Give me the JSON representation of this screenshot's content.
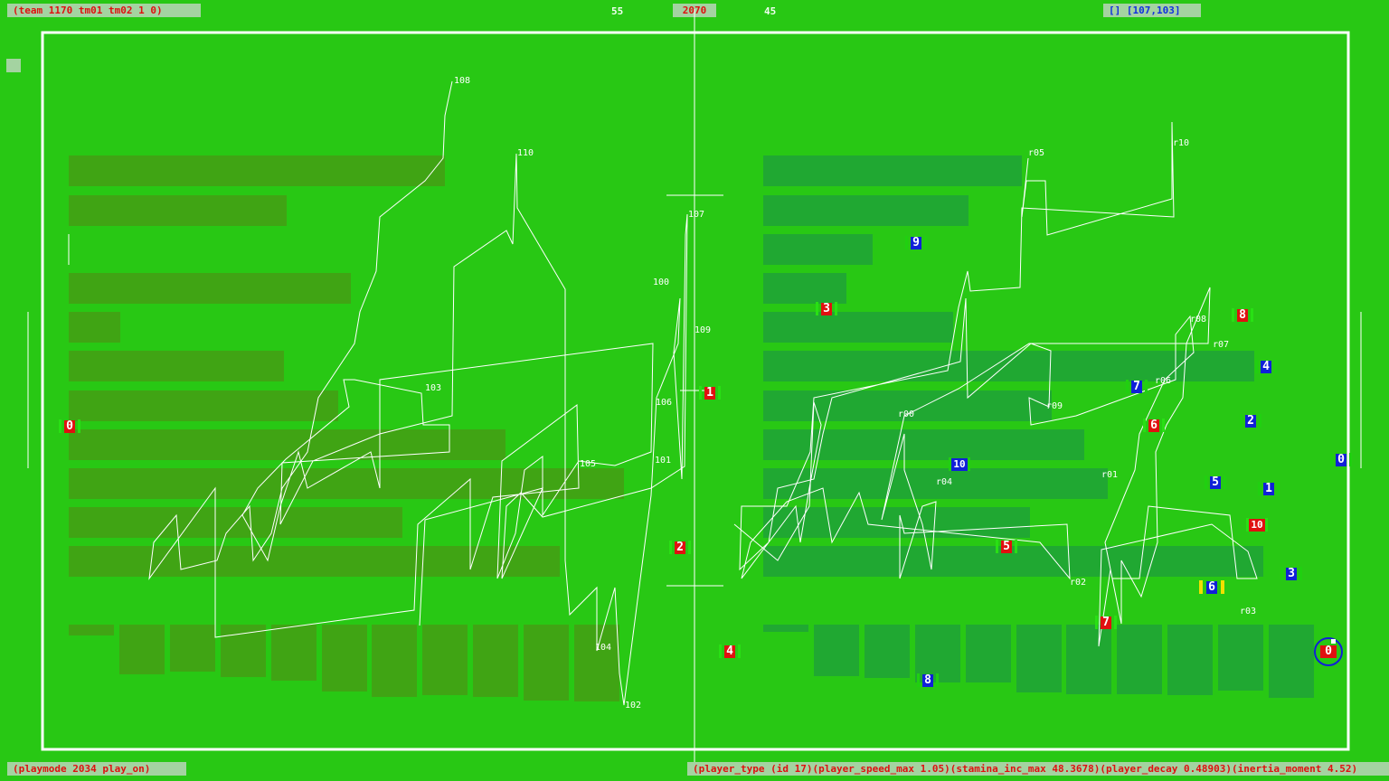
{
  "header": {
    "team_info": "(team 1170 tm01 tm02 1 0)",
    "score_left": "55",
    "time": "2070",
    "score_right": "45",
    "cursor": "[] [107,103]"
  },
  "footer": {
    "playmode": "(playmode 2034 play_on)",
    "player_type": "(player_type (id 17)(player_speed_max 1.05)(stamina_inc_max 48.3678)(player_decay 0.48903)(inertia_moment 4.52)"
  },
  "colors": {
    "pitch": "#28c814",
    "red_team": "#e01010",
    "blue_team": "#1020d8",
    "lines": "#ffffff"
  },
  "red_players": [
    "0",
    "1",
    "2",
    "3",
    "4",
    "5",
    "6",
    "7",
    "8",
    "10",
    "0"
  ],
  "blue_players": [
    "9",
    "4",
    "7",
    "2",
    "0",
    "10",
    "5",
    "1",
    "3",
    "6",
    "8"
  ],
  "left_labels": [
    "108",
    "110",
    "107",
    "100",
    "109",
    "103",
    "106",
    "105",
    "101",
    "104",
    "102"
  ],
  "right_labels": [
    "r05",
    "r10",
    "r08",
    "r07",
    "r06",
    "r09",
    "r00",
    "r01",
    "r04",
    "r02",
    "r03"
  ]
}
